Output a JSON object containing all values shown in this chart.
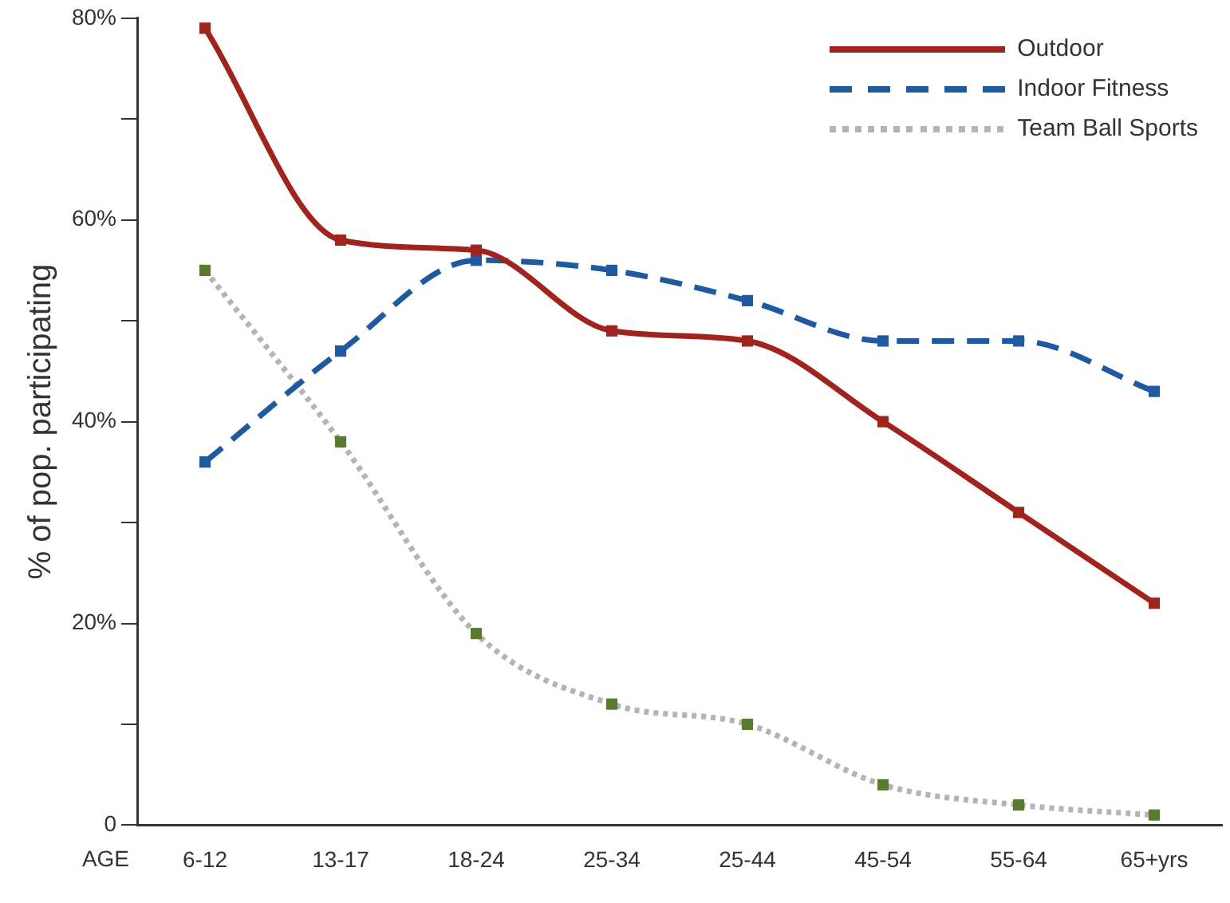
{
  "chart_data": {
    "type": "line",
    "xlabel": "AGE",
    "ylabel": "% of pop. participating",
    "categories": [
      "6-12",
      "13-17",
      "18-24",
      "25-34",
      "25-44",
      "45-54",
      "55-64",
      "65+yrs"
    ],
    "series": [
      {
        "name": "Outdoor",
        "color": "#a0231e",
        "line_style": "solid",
        "values": [
          79,
          58,
          57,
          49,
          48,
          40,
          31,
          22
        ]
      },
      {
        "name": "Indoor Fitness",
        "color": "#1f5aa0",
        "line_style": "dashed",
        "values": [
          36,
          47,
          56,
          55,
          52,
          48,
          48,
          43
        ]
      },
      {
        "name": "Team Ball Sports",
        "color": "#b4b4b4",
        "colors": [
          "#5a7a30",
          "#5a7a30",
          "#5a7a30",
          "#5a7a30",
          "#5a7a30",
          "#5a7a30",
          "#5a7a30",
          "#5a7a30"
        ],
        "line_style": "dotted",
        "values": [
          55,
          38,
          19,
          12,
          10,
          4,
          2,
          1
        ]
      }
    ],
    "ylim": [
      0,
      80
    ],
    "yticks": [
      {
        "value": 0,
        "label": "0"
      },
      {
        "value": 10,
        "label": null
      },
      {
        "value": 20,
        "label": "20%"
      },
      {
        "value": 30,
        "label": null
      },
      {
        "value": 40,
        "label": "40%"
      },
      {
        "value": 50,
        "label": null
      },
      {
        "value": 60,
        "label": "60%"
      },
      {
        "value": 70,
        "label": null
      },
      {
        "value": 80,
        "label": "80%"
      }
    ],
    "grid": false,
    "legend": "top right",
    "marker": "square"
  }
}
